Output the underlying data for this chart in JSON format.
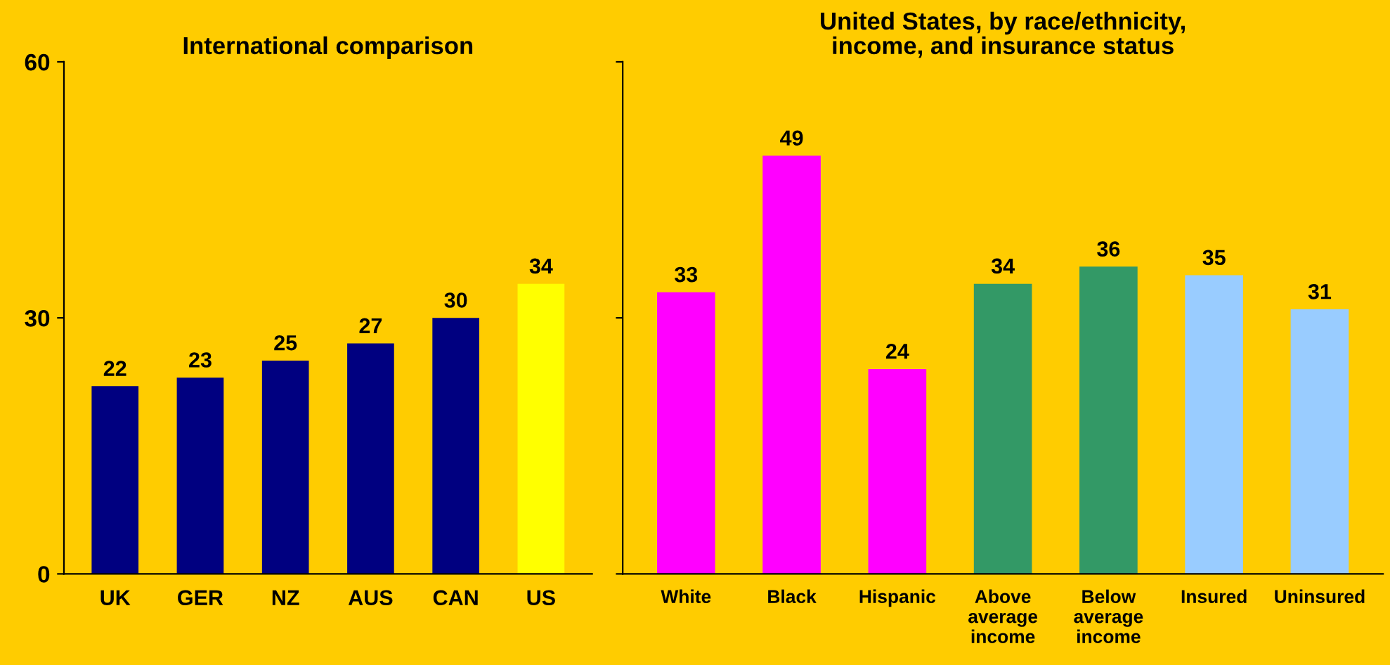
{
  "chart_data": [
    {
      "type": "bar",
      "title": "International comparison",
      "categories": [
        "UK",
        "GER",
        "NZ",
        "AUS",
        "CAN",
        "US"
      ],
      "values": [
        22,
        23,
        25,
        27,
        30,
        34
      ],
      "colors": [
        "#000080",
        "#000080",
        "#000080",
        "#000080",
        "#000080",
        "#ffff00"
      ],
      "ylim": [
        0,
        60
      ],
      "yticks": [
        0,
        30,
        60
      ],
      "data_labels": true
    },
    {
      "type": "bar",
      "title": "United States, by race/ethnicity,\nincome, and insurance status",
      "categories": [
        "White",
        "Black",
        "Hispanic",
        "Above\naverage\nincome",
        "Below\naverage\nincome",
        "Insured",
        "Uninsured"
      ],
      "values": [
        33,
        49,
        24,
        34,
        36,
        35,
        31
      ],
      "colors": [
        "#ff00ff",
        "#ff00ff",
        "#ff00ff",
        "#339966",
        "#339966",
        "#99ccff",
        "#99ccff"
      ],
      "ylim": [
        0,
        60
      ],
      "yticks": [
        0,
        30,
        60
      ],
      "tick_labels": "x",
      "data_labels": true
    }
  ]
}
